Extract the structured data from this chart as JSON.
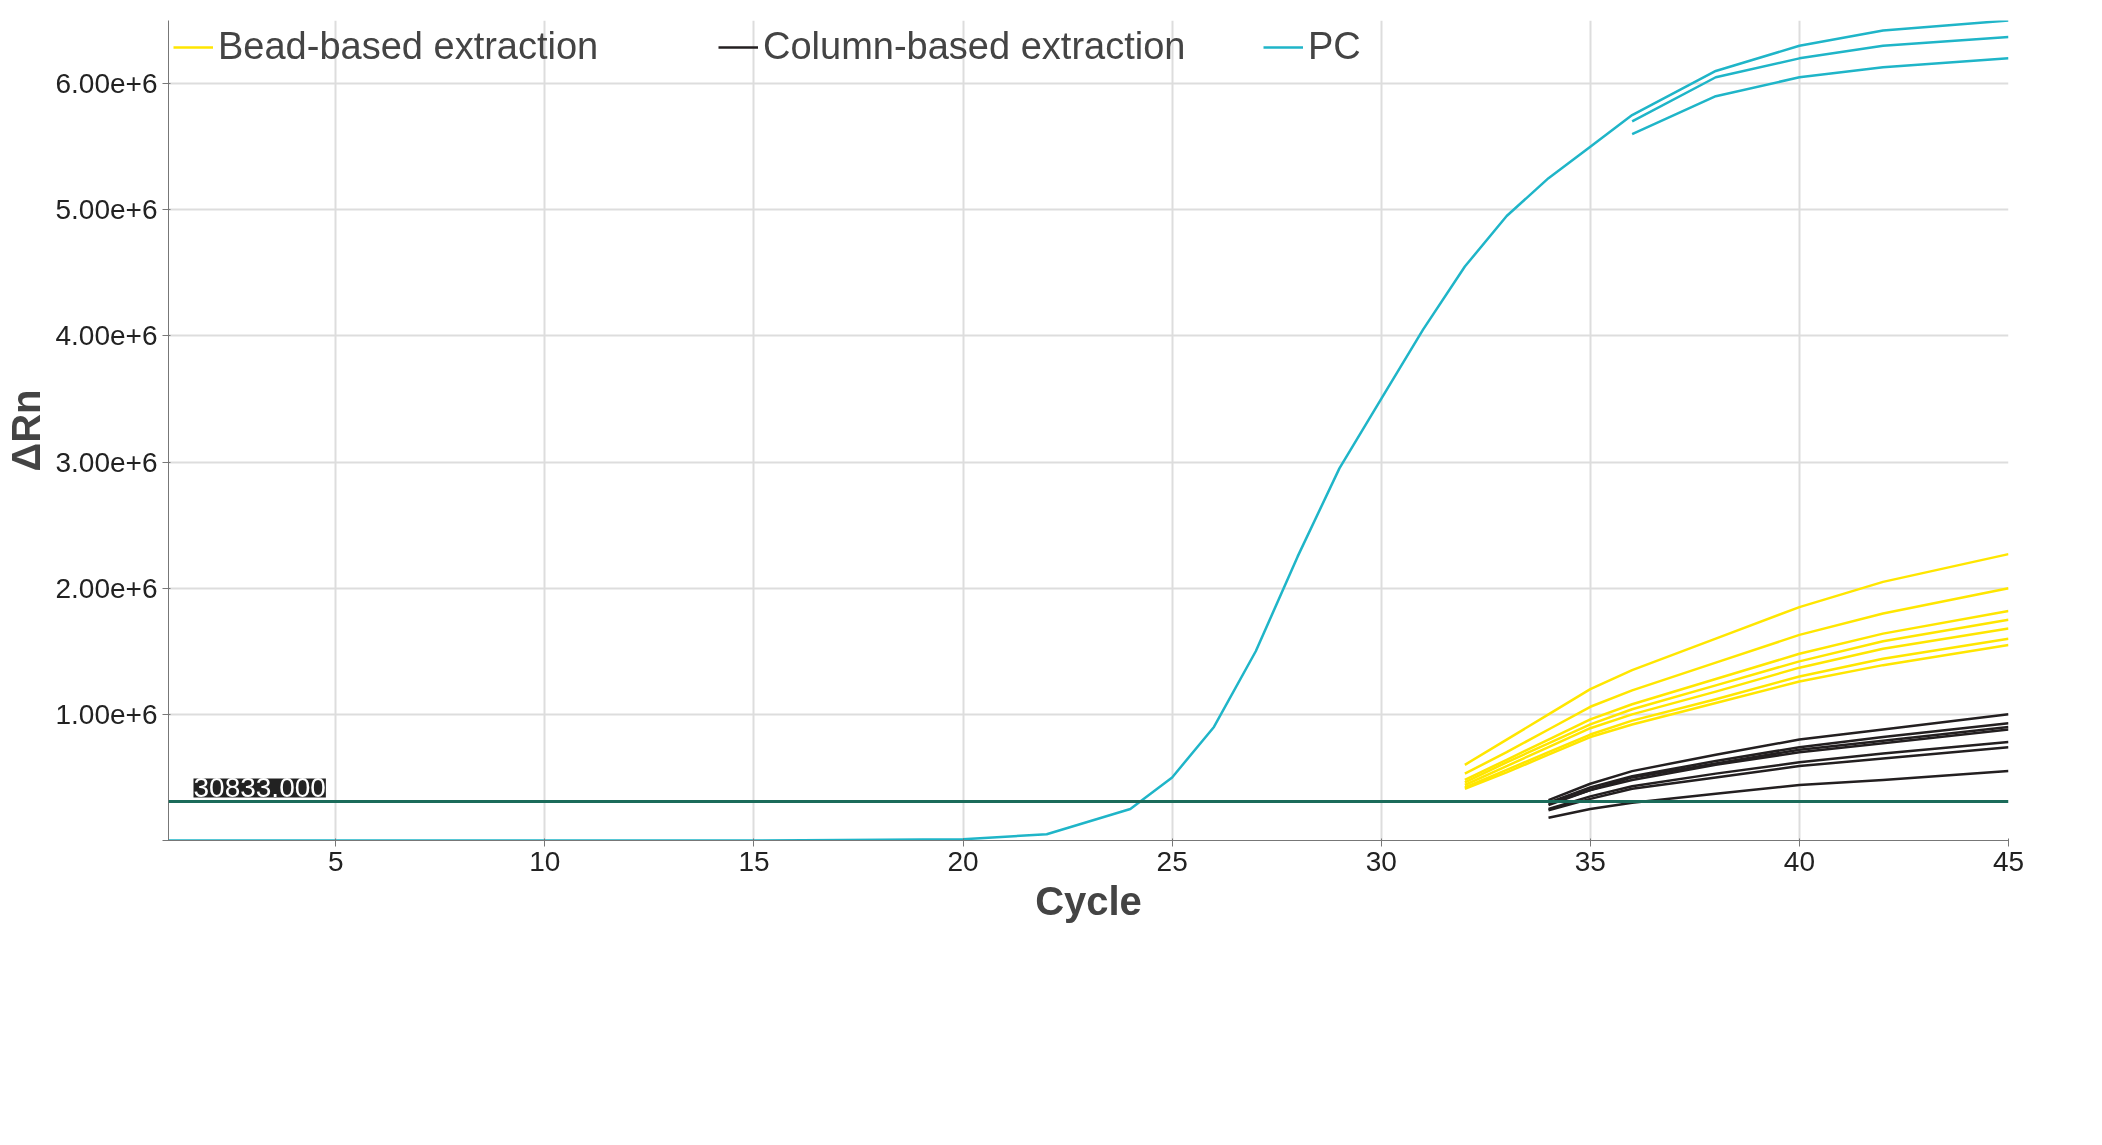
{
  "chart_data": {
    "type": "line",
    "xlabel": "Cycle",
    "ylabel": "ΔRn",
    "x": [
      1,
      5,
      10,
      15,
      20,
      22,
      24,
      25,
      26,
      27,
      28,
      29,
      30,
      31,
      32,
      33,
      34,
      35,
      36,
      38,
      40,
      42,
      45
    ],
    "xlim": [
      1,
      45
    ],
    "xticks": [
      5,
      10,
      15,
      20,
      25,
      30,
      35,
      40,
      45
    ],
    "ylim": [
      0,
      6500000
    ],
    "yticks": [
      {
        "value": 0,
        "label": null
      },
      {
        "value": 1000000,
        "label": "1.00e+6"
      },
      {
        "value": 2000000,
        "label": "2.00e+6"
      },
      {
        "value": 3000000,
        "label": "3.00e+6"
      },
      {
        "value": 4000000,
        "label": "4.00e+6"
      },
      {
        "value": 5000000,
        "label": "5.00e+6"
      },
      {
        "value": 6000000,
        "label": "6.00e+6"
      }
    ],
    "grid": true,
    "legend": "top left",
    "marker": "none",
    "line_style": "solid",
    "ref_lines": [
      {
        "axis": "y",
        "value": 310000,
        "color": "#1b6b5a"
      }
    ],
    "annotations": [
      "30833.000"
    ],
    "series": [
      {
        "name": "Bead-based extraction",
        "color": "#ffe600",
        "x": [
          32,
          33,
          34,
          35,
          36,
          38,
          40,
          42,
          45
        ],
        "values": [
          600000,
          800000,
          1000000,
          1200000,
          1350000,
          1600000,
          1850000,
          2050000,
          2270000
        ]
      },
      {
        "color": "#ffe600",
        "x": [
          32,
          33,
          34,
          35,
          36,
          38,
          40,
          42,
          45
        ],
        "values": [
          530000,
          700000,
          880000,
          1060000,
          1190000,
          1410000,
          1630000,
          1800000,
          2000000
        ]
      },
      {
        "color": "#ffe600",
        "x": [
          32,
          33,
          34,
          35,
          36,
          38,
          40,
          42,
          45
        ],
        "values": [
          480000,
          640000,
          800000,
          960000,
          1080000,
          1280000,
          1480000,
          1640000,
          1820000
        ]
      },
      {
        "color": "#ffe600",
        "x": [
          32,
          33,
          34,
          35,
          36,
          38,
          40,
          42,
          45
        ],
        "values": [
          460000,
          620000,
          770000,
          920000,
          1040000,
          1230000,
          1420000,
          1580000,
          1750000
        ]
      },
      {
        "color": "#ffe600",
        "x": [
          32,
          33,
          34,
          35,
          36,
          38,
          40,
          42,
          45
        ],
        "values": [
          440000,
          590000,
          740000,
          890000,
          1000000,
          1180000,
          1370000,
          1520000,
          1680000
        ]
      },
      {
        "color": "#ffe600",
        "x": [
          32,
          33,
          34,
          35,
          36,
          38,
          40,
          42,
          45
        ],
        "values": [
          420000,
          560000,
          700000,
          840000,
          950000,
          1120000,
          1300000,
          1440000,
          1600000
        ]
      },
      {
        "color": "#ffe600",
        "x": [
          32,
          33,
          34,
          35,
          36,
          38,
          40,
          42,
          45
        ],
        "values": [
          410000,
          540000,
          680000,
          820000,
          920000,
          1090000,
          1260000,
          1390000,
          1550000
        ]
      },
      {
        "name": "Column-based extraction",
        "color": "#231f20",
        "x": [
          34,
          35,
          36,
          38,
          40,
          42,
          45
        ],
        "values": [
          320000,
          450000,
          550000,
          680000,
          800000,
          880000,
          1000000
        ]
      },
      {
        "color": "#231f20",
        "x": [
          34,
          35,
          36,
          38,
          40,
          42,
          45
        ],
        "values": [
          300000,
          420000,
          510000,
          630000,
          740000,
          820000,
          930000
        ]
      },
      {
        "color": "#231f20",
        "x": [
          34,
          35,
          36,
          38,
          40,
          42,
          45
        ],
        "values": [
          290000,
          400000,
          500000,
          610000,
          720000,
          790000,
          900000
        ]
      },
      {
        "color": "#231f20",
        "x": [
          34,
          35,
          36,
          38,
          40,
          42,
          45
        ],
        "values": [
          280000,
          400000,
          480000,
          600000,
          700000,
          770000,
          880000
        ]
      },
      {
        "color": "#231f20",
        "x": [
          34,
          35,
          36,
          38,
          40,
          42,
          45
        ],
        "values": [
          250000,
          350000,
          430000,
          530000,
          620000,
          690000,
          780000
        ]
      },
      {
        "color": "#231f20",
        "x": [
          34,
          35,
          36,
          38,
          40,
          42,
          45
        ],
        "values": [
          240000,
          330000,
          410000,
          500000,
          590000,
          650000,
          740000
        ]
      },
      {
        "color": "#231f20",
        "x": [
          34,
          35,
          36,
          38,
          40,
          42,
          45
        ],
        "values": [
          180000,
          250000,
          300000,
          370000,
          440000,
          480000,
          550000
        ]
      },
      {
        "name": "PC",
        "color": "#1fb5c8",
        "values": [
          0,
          0,
          0,
          0,
          10000,
          50000,
          250000,
          500000,
          900000,
          1500000,
          2250000,
          2950000,
          3500000,
          4050000,
          4550000,
          4950000,
          5250000,
          5500000,
          5750000,
          6100000,
          6300000,
          6420000,
          6500000
        ]
      },
      {
        "color": "#1fb5c8",
        "x": [
          36,
          38,
          40,
          42,
          45
        ],
        "values": [
          5700000,
          6050000,
          6200000,
          6300000,
          6370000
        ]
      },
      {
        "color": "#1fb5c8",
        "x": [
          36,
          38,
          40,
          42,
          45
        ],
        "values": [
          5600000,
          5900000,
          6050000,
          6130000,
          6200000
        ]
      }
    ]
  }
}
